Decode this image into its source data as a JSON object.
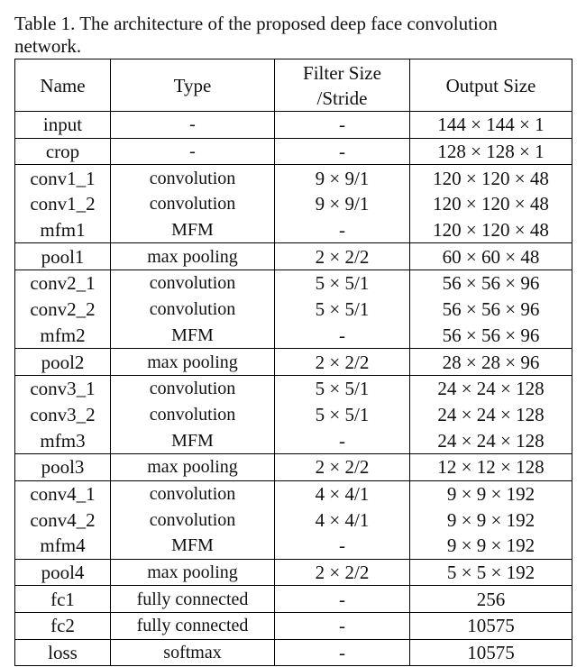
{
  "caption": "Table 1. The architecture of the proposed deep face convolution network.",
  "headers": {
    "name": "Name",
    "type": "Type",
    "filter_line1": "Filter Size",
    "filter_line2": "/Stride",
    "output": "Output Size"
  },
  "rows": [
    {
      "name": "input",
      "type": "-",
      "filter": "-",
      "output": "144 × 144 × 1",
      "sep": true
    },
    {
      "name": "crop",
      "type": "-",
      "filter": "-",
      "output": "128 × 128 × 1",
      "sep": true
    },
    {
      "name": "conv1_1",
      "type": "convolution",
      "filter": "9 × 9/1",
      "output": "120 × 120 × 48",
      "sep": true
    },
    {
      "name": "conv1_2",
      "type": "convolution",
      "filter": "9 × 9/1",
      "output": "120 × 120 × 48",
      "sep": false
    },
    {
      "name": "mfm1",
      "type": "MFM",
      "filter": "-",
      "output": "120 × 120 × 48",
      "sep": false
    },
    {
      "name": "pool1",
      "type": "max pooling",
      "filter": "2 × 2/2",
      "output": "60 × 60 × 48",
      "sep": true
    },
    {
      "name": "conv2_1",
      "type": "convolution",
      "filter": "5 × 5/1",
      "output": "56 × 56 × 96",
      "sep": true
    },
    {
      "name": "conv2_2",
      "type": "convolution",
      "filter": "5 × 5/1",
      "output": "56 × 56 × 96",
      "sep": false
    },
    {
      "name": "mfm2",
      "type": "MFM",
      "filter": "-",
      "output": "56 × 56 × 96",
      "sep": false
    },
    {
      "name": "pool2",
      "type": "max pooling",
      "filter": "2 × 2/2",
      "output": "28 × 28 × 96",
      "sep": true
    },
    {
      "name": "conv3_1",
      "type": "convolution",
      "filter": "5 × 5/1",
      "output": "24 × 24 × 128",
      "sep": true
    },
    {
      "name": "conv3_2",
      "type": "convolution",
      "filter": "5 × 5/1",
      "output": "24 × 24 × 128",
      "sep": false
    },
    {
      "name": "mfm3",
      "type": "MFM",
      "filter": "-",
      "output": "24 × 24 × 128",
      "sep": false
    },
    {
      "name": "pool3",
      "type": "max pooling",
      "filter": "2 × 2/2",
      "output": "12 × 12 × 128",
      "sep": true
    },
    {
      "name": "conv4_1",
      "type": "convolution",
      "filter": "4 × 4/1",
      "output": "9 × 9 × 192",
      "sep": true
    },
    {
      "name": "conv4_2",
      "type": "convolution",
      "filter": "4 × 4/1",
      "output": "9 × 9 × 192",
      "sep": false
    },
    {
      "name": "mfm4",
      "type": "MFM",
      "filter": "-",
      "output": "9 × 9 × 192",
      "sep": false
    },
    {
      "name": "pool4",
      "type": "max pooling",
      "filter": "2 × 2/2",
      "output": "5 × 5 × 192",
      "sep": true
    },
    {
      "name": "fc1",
      "type": "fully connected",
      "filter": "-",
      "output": "256",
      "sep": true
    },
    {
      "name": "fc2",
      "type": "fully connected",
      "filter": "-",
      "output": "10575",
      "sep": true
    },
    {
      "name": "loss",
      "type": "softmax",
      "filter": "-",
      "output": "10575",
      "sep": true
    }
  ]
}
